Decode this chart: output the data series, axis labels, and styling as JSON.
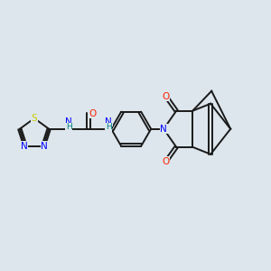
{
  "background_color": "#dce6ec",
  "bond_color": "#1a1a1a",
  "atom_colors": {
    "N": "#0000ff",
    "O": "#ff2200",
    "S": "#cccc00",
    "H": "#008080"
  },
  "figsize": [
    3.0,
    3.0
  ],
  "dpi": 100,
  "lw": 1.4,
  "fs": 7.5
}
